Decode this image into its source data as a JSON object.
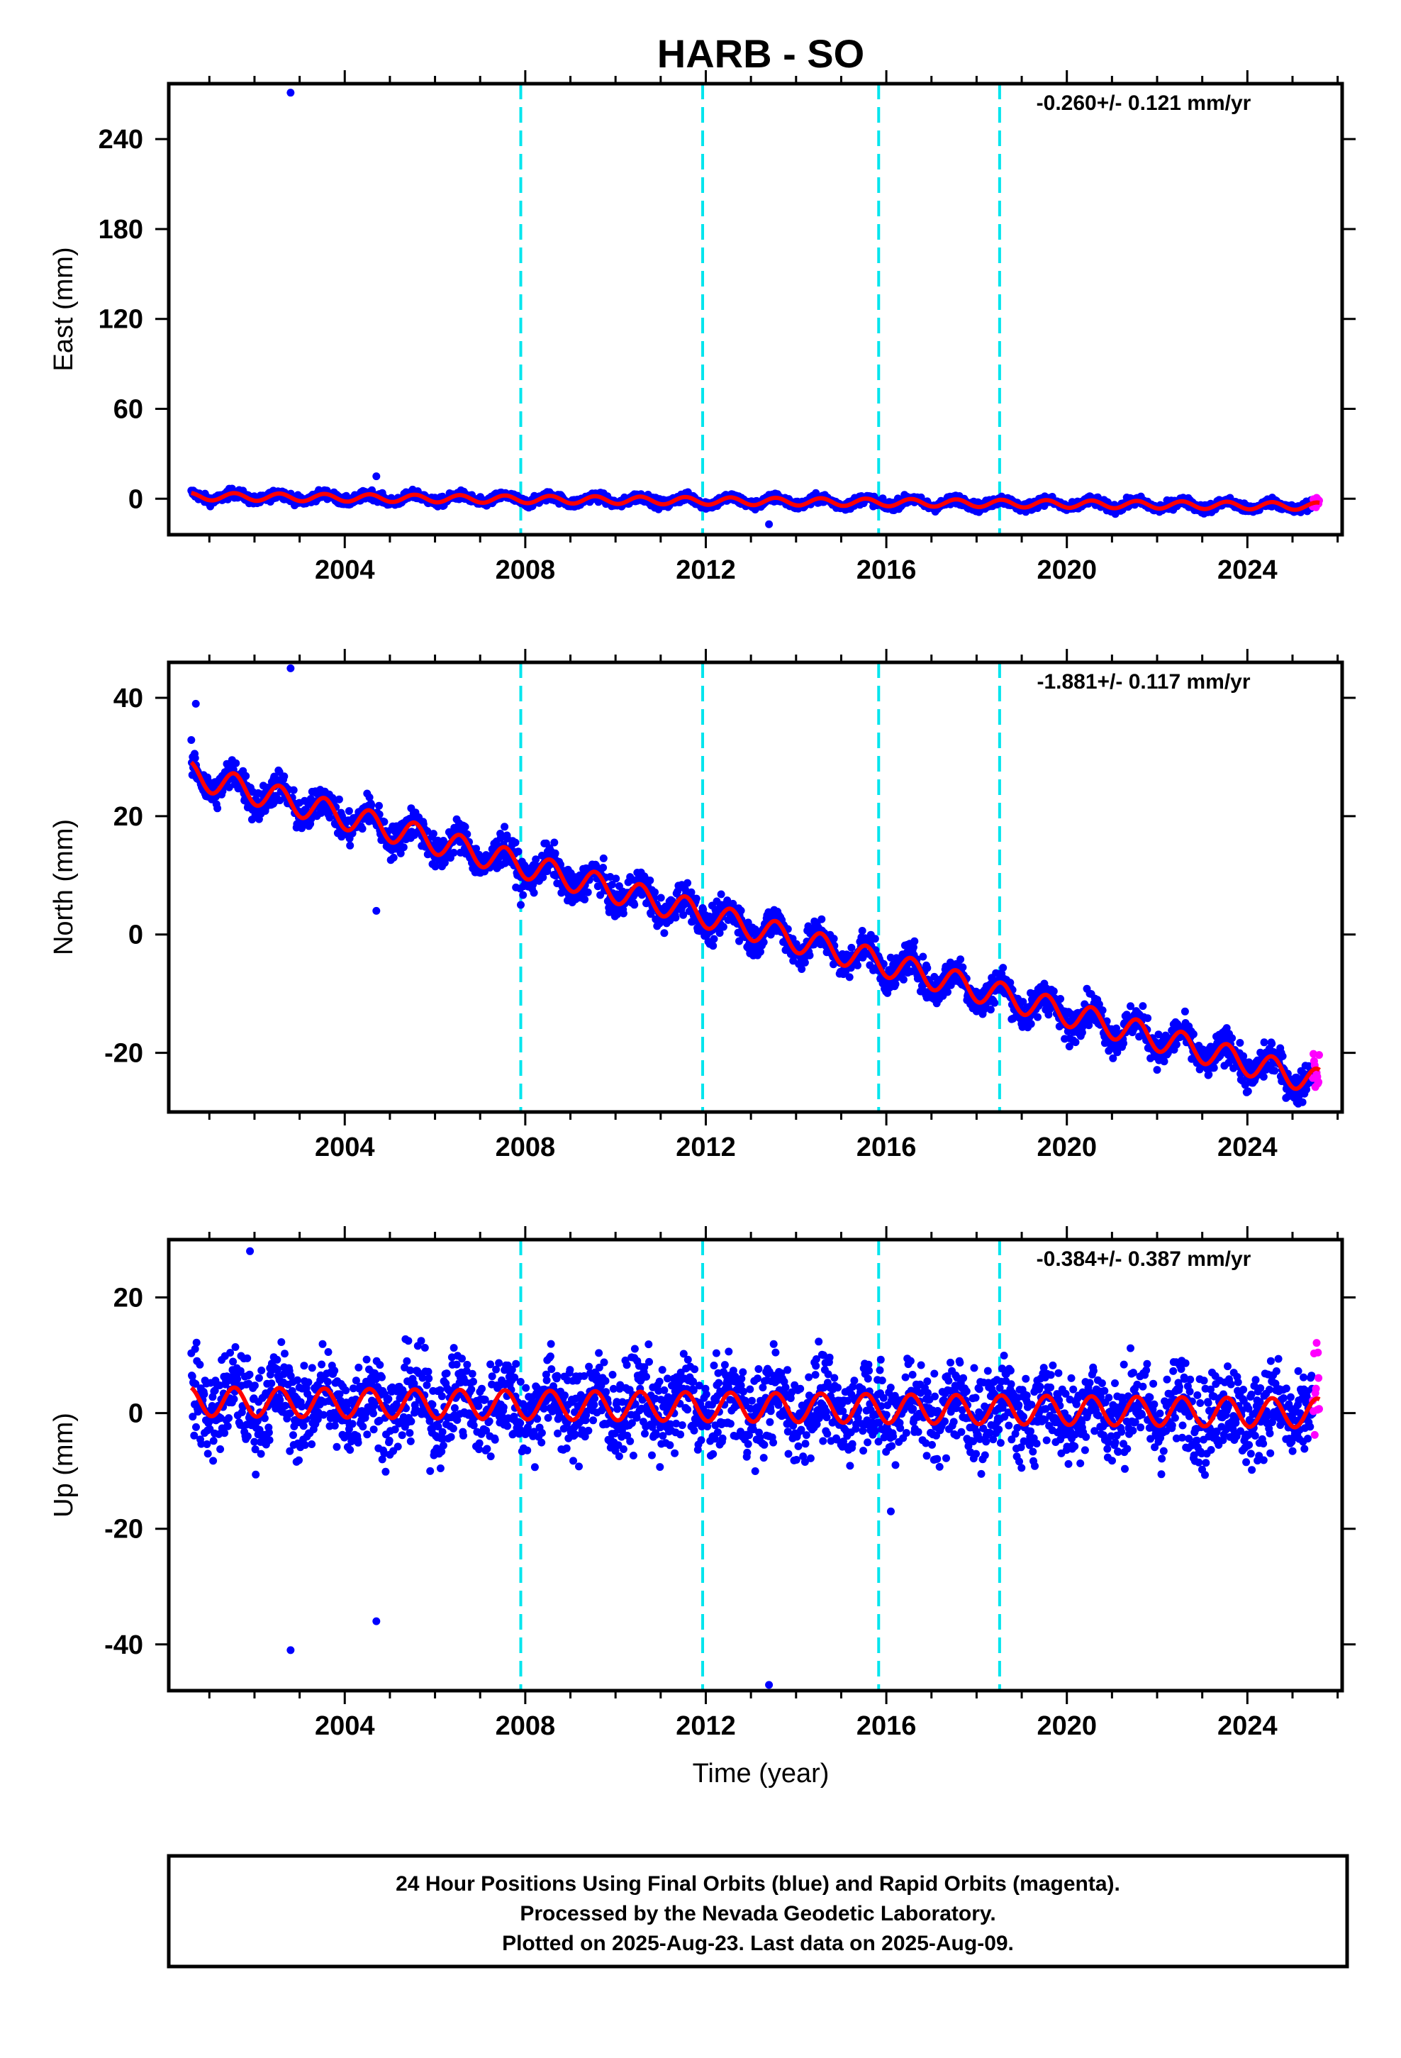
{
  "chart_data": {
    "title": "HARB - SO",
    "xlabel": "Time (year)",
    "x_ticks": [
      "2004",
      "2008",
      "2012",
      "2016",
      "2020",
      "2024"
    ],
    "x_tick_values": [
      2004,
      2008,
      2012,
      2016,
      2020,
      2024
    ],
    "xlim": [
      2000.1,
      2026.1
    ],
    "event_lines": [
      2007.9,
      2011.93,
      2015.83,
      2018.51
    ],
    "colors": {
      "final": "#0000ff",
      "rapid": "#ff00ff",
      "model": "#ff0000",
      "events": "#00e5ee"
    },
    "panels": [
      {
        "type": "scatter",
        "ylabel": "East (mm)",
        "rate_text": "-0.260+/- 0.121 mm/yr",
        "ylim": [
          -24,
          277
        ],
        "y_ticks": [
          "0",
          "60",
          "120",
          "180",
          "240"
        ],
        "y_tick_values": [
          0,
          60,
          120,
          180,
          240
        ],
        "start_value": 1.5,
        "end_value": -5.0,
        "seasonal_amplitude": 2.5,
        "noise": 2.2,
        "final_end": 2025.45,
        "rapid_range": [
          2025.45,
          2025.6
        ],
        "outliers": [
          [
            2002.8,
            271
          ],
          [
            2004.7,
            15
          ],
          [
            2013.4,
            -17
          ]
        ]
      },
      {
        "type": "scatter",
        "ylabel": "North (mm)",
        "rate_text": "-1.881+/- 0.117 mm/yr",
        "ylim": [
          -30,
          46
        ],
        "y_ticks": [
          "-20",
          "0",
          "20",
          "40"
        ],
        "y_tick_values": [
          -20,
          0,
          20,
          40
        ],
        "start_value": 27.0,
        "end_value": -25.0,
        "seasonal_amplitude": 2.2,
        "noise": 2.0,
        "final_end": 2025.45,
        "rapid_range": [
          2025.45,
          2025.6
        ],
        "outliers": [
          [
            2000.7,
            39
          ],
          [
            2002.8,
            45
          ],
          [
            2004.7,
            4
          ],
          [
            2007.9,
            5
          ]
        ]
      },
      {
        "type": "scatter",
        "ylabel": "Up (mm)",
        "rate_text": "-0.384+/- 0.387 mm/yr",
        "ylim": [
          -48,
          30
        ],
        "y_ticks": [
          "-40",
          "-20",
          "0",
          "20"
        ],
        "y_tick_values": [
          -40,
          -20,
          0,
          20
        ],
        "start_value": 2.0,
        "end_value": 0.0,
        "seasonal_amplitude": 2.5,
        "noise": 5.5,
        "final_end": 2025.45,
        "rapid_range": [
          2025.45,
          2025.6
        ],
        "outliers": [
          [
            2001.9,
            28
          ],
          [
            2002.8,
            -41
          ],
          [
            2004.7,
            -36
          ],
          [
            2013.4,
            -47
          ],
          [
            2016.1,
            -17
          ]
        ]
      }
    ]
  },
  "footer": {
    "line1": "24 Hour Positions Using Final Orbits (blue) and Rapid Orbits (magenta).",
    "line2": "Processed by the Nevada Geodetic Laboratory.",
    "line3": "Plotted on 2025-Aug-23. Last data on 2025-Aug-09."
  }
}
